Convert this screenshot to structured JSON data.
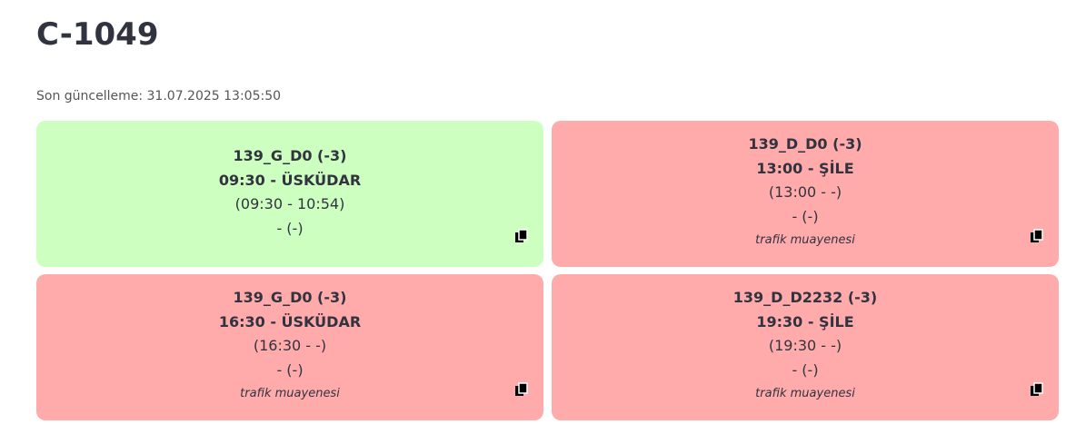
{
  "header": {
    "title": "C-1049",
    "updated": "Son güncelleme: 31.07.2025 13:05:50"
  },
  "cards": [
    {
      "code": "139_G_D0 (-3)",
      "route": "09:30 - ÜSKÜDAR",
      "times": "(09:30 - 10:54)",
      "extra": "- (-)",
      "status": "green"
    },
    {
      "code": "139_D_D0 (-3)",
      "route": "13:00 - ŞİLE",
      "times": "(13:00 - -)",
      "extra": "- (-)",
      "note": "trafik muayenesi",
      "status": "red"
    },
    {
      "code": "139_G_D0 (-3)",
      "route": "16:30 - ÜSKÜDAR",
      "times": "(16:30 - -)",
      "extra": "- (-)",
      "note": "trafik muayenesi",
      "status": "red"
    },
    {
      "code": "139_D_D2232 (-3)",
      "route": "19:30 - ŞİLE",
      "times": "(19:30 - -)",
      "extra": "- (-)",
      "note": "trafik muayenesi",
      "status": "red"
    }
  ]
}
